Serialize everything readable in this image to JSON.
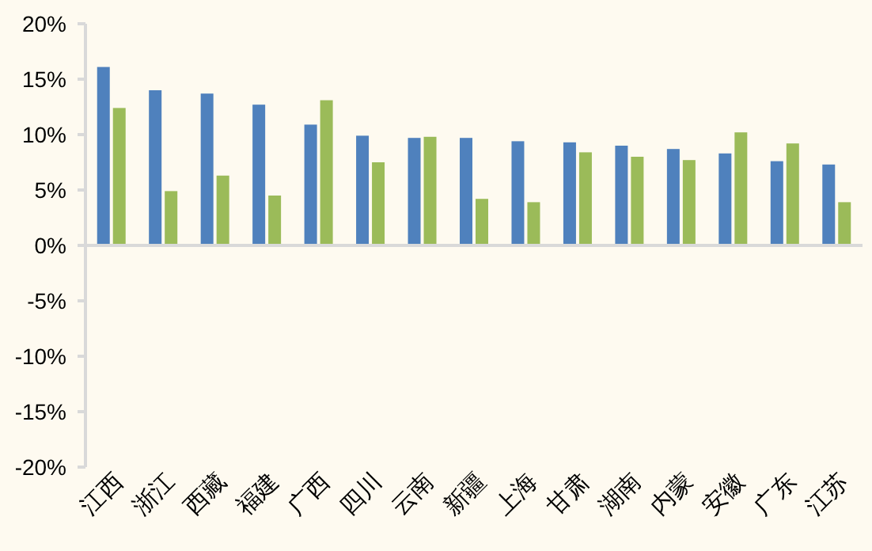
{
  "chart_data": {
    "type": "bar",
    "categories": [
      "江西",
      "浙江",
      "西藏",
      "福建",
      "广西",
      "四川",
      "云南",
      "新疆",
      "上海",
      "甘肃",
      "湖南",
      "内蒙",
      "安徽",
      "广东",
      "江苏"
    ],
    "series": [
      {
        "color": "#4f81bd",
        "values": [
          16.1,
          14.0,
          13.7,
          12.7,
          10.9,
          9.9,
          9.7,
          9.7,
          9.4,
          9.3,
          9.0,
          8.7,
          8.3,
          7.6,
          7.3
        ]
      },
      {
        "color": "#9bbb59",
        "values": [
          12.4,
          4.9,
          6.3,
          4.5,
          13.1,
          7.5,
          9.8,
          4.2,
          3.9,
          8.4,
          8.0,
          7.7,
          10.2,
          9.2,
          3.9
        ]
      }
    ],
    "ylim": [
      -20,
      20
    ],
    "yticks": [
      {
        "value": -20,
        "label": "-20%"
      },
      {
        "value": -15,
        "label": "-15%"
      },
      {
        "value": -10,
        "label": "-10%"
      },
      {
        "value": -5,
        "label": "-5%"
      },
      {
        "value": 0,
        "label": "0%"
      },
      {
        "value": 5,
        "label": "5%"
      },
      {
        "value": 10,
        "label": "10%"
      },
      {
        "value": 15,
        "label": "15%"
      },
      {
        "value": 20,
        "label": "20%"
      }
    ]
  }
}
